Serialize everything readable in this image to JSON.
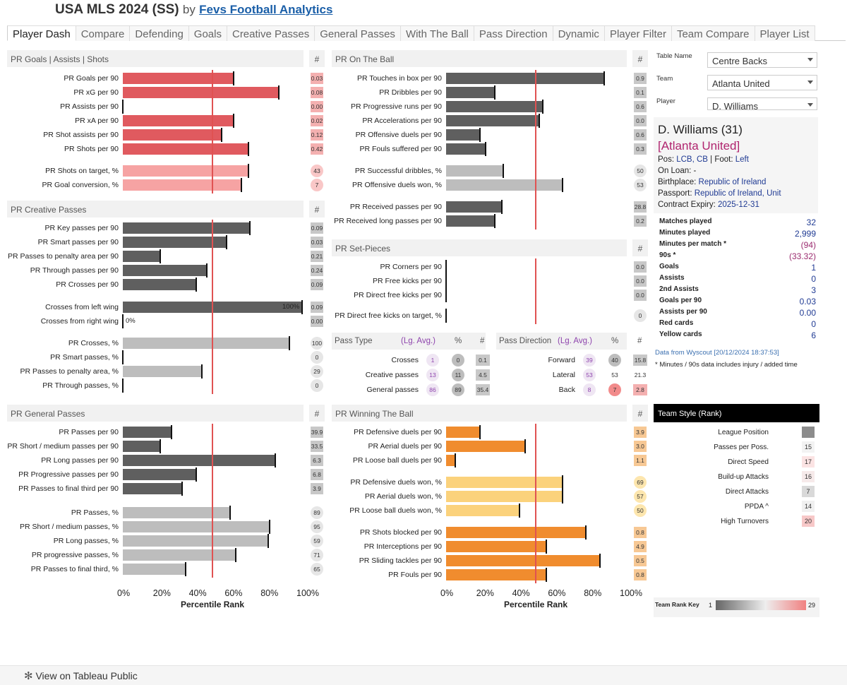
{
  "header": {
    "title": "USA MLS 2024 (SS)",
    "by": "by",
    "link": "Fevs Football Analytics"
  },
  "tabs": [
    "Player Dash",
    "Compare",
    "Defending",
    "Goals",
    "Creative Passes",
    "General Passes",
    "With The Ball",
    "Pass Direction",
    "Dynamic",
    "Player Filter",
    "Team Compare",
    "Player List"
  ],
  "axis": {
    "ticks": [
      "0%",
      "20%",
      "40%",
      "60%",
      "80%",
      "100%"
    ],
    "title": "Percentile Rank",
    "league_avg": 50
  },
  "colors": {
    "red": "#e05a5f",
    "pink": "#f6a3a3",
    "dark": "#5f5f5f",
    "grey": "#bdbdbd",
    "orange": "#f08c2e",
    "yellow": "#fbd27c"
  },
  "sections": {
    "goals": {
      "title": "PR Goals | Assists | Shots",
      "hash": "#",
      "rows": [
        {
          "label": "PR Goals per 90",
          "value": 62,
          "num": "0.03",
          "style": "red",
          "badge": "sq"
        },
        {
          "label": "PR xG per 90",
          "value": 87,
          "num": "0.08",
          "style": "red",
          "badge": "sq"
        },
        {
          "label": "PR Assists per 90",
          "value": 0,
          "num": "0.00",
          "style": "red",
          "badge": "sq"
        },
        {
          "label": "PR xA per 90",
          "value": 62,
          "num": "0.02",
          "style": "red",
          "badge": "sq"
        },
        {
          "label": "PR Shot assists per 90",
          "value": 55,
          "num": "0.12",
          "style": "red",
          "badge": "sq"
        },
        {
          "label": "PR Shots per 90",
          "value": 70,
          "num": "0.42",
          "style": "red",
          "badge": "sq"
        },
        {
          "label": "PR Shots on target, %",
          "value": 70,
          "num": "43",
          "style": "pink",
          "badge": "circ",
          "gap": true
        },
        {
          "label": "PR Goal conversion, %",
          "value": 66,
          "num": "7",
          "style": "pink",
          "badge": "circ"
        }
      ]
    },
    "creative": {
      "title": "PR Creative Passes",
      "hash": "#",
      "rows": [
        {
          "label": "PR Key passes per 90",
          "value": 71,
          "num": "0.09",
          "style": "dark",
          "badge": "sq"
        },
        {
          "label": "PR Smart passes per 90",
          "value": 58,
          "num": "0.03",
          "style": "dark",
          "badge": "sq"
        },
        {
          "label": "PR Passes to penalty area per 90",
          "value": 21,
          "num": "0.21",
          "style": "dark",
          "badge": "sq"
        },
        {
          "label": "PR Through passes per 90",
          "value": 47,
          "num": "0.24",
          "style": "dark",
          "badge": "sq"
        },
        {
          "label": "PR Crosses per 90",
          "value": 41,
          "num": "0.09",
          "style": "dark",
          "badge": "sq"
        },
        {
          "label": "Crosses from left wing",
          "value": 100,
          "num": "0.09",
          "style": "dark",
          "badge": "sq",
          "gap": true,
          "inlabel": "100%"
        },
        {
          "label": "Crosses from right wing",
          "value": 0,
          "num": "0.00",
          "style": "dark",
          "badge": "sq",
          "inlabel": "0%"
        },
        {
          "label": "PR Crosses, %",
          "value": 93,
          "num": "100",
          "style": "grey",
          "badge": "circ",
          "gap": true
        },
        {
          "label": "PR Smart passes, %",
          "value": 0,
          "num": "0",
          "style": "grey",
          "badge": "circ"
        },
        {
          "label": "PR Passes to penalty area, %",
          "value": 44,
          "num": "29",
          "style": "grey",
          "badge": "circ"
        },
        {
          "label": "PR Through passes, %",
          "value": 0,
          "num": "0",
          "style": "grey",
          "badge": "circ"
        }
      ]
    },
    "general": {
      "title": "PR General Passes",
      "hash": "#",
      "rows": [
        {
          "label": "PR Passes per 90",
          "value": 27,
          "num": "39.9",
          "style": "dark",
          "badge": "sq"
        },
        {
          "label": "PR Short / medium passes per 90",
          "value": 21,
          "num": "33.5",
          "style": "dark",
          "badge": "sq"
        },
        {
          "label": "PR Long passes per 90",
          "value": 85,
          "num": "6.3",
          "style": "dark",
          "badge": "sq"
        },
        {
          "label": "PR Progressive passes per 90",
          "value": 41,
          "num": "6.8",
          "style": "dark",
          "badge": "sq"
        },
        {
          "label": "PR Passes to final third per 90",
          "value": 33,
          "num": "3.9",
          "style": "dark",
          "badge": "sq"
        },
        {
          "label": "PR Passes, %",
          "value": 60,
          "num": "89",
          "style": "grey",
          "badge": "circ",
          "gap": true
        },
        {
          "label": "PR Short / medium passes, %",
          "value": 82,
          "num": "95",
          "style": "grey",
          "badge": "circ"
        },
        {
          "label": "PR Long passes, %",
          "value": 81,
          "num": "59",
          "style": "grey",
          "badge": "circ"
        },
        {
          "label": "PR progressive passes, %",
          "value": 63,
          "num": "71",
          "style": "grey",
          "badge": "circ"
        },
        {
          "label": "PR Passes to final third, %",
          "value": 35,
          "num": "65",
          "style": "grey",
          "badge": "circ"
        }
      ]
    },
    "ontheball": {
      "title": "PR On The Ball",
      "hash": "#",
      "rows": [
        {
          "label": "PR Touches in box per 90",
          "value": 88,
          "num": "0.9",
          "style": "dark",
          "badge": "sq"
        },
        {
          "label": "PR Dribbles per 90",
          "value": 27,
          "num": "0.1",
          "style": "dark",
          "badge": "sq"
        },
        {
          "label": "PR Progressive runs per 90",
          "value": 54,
          "num": "0.6",
          "style": "dark",
          "badge": "sq"
        },
        {
          "label": "PR Accelerations per 90",
          "value": 52,
          "num": "0.0",
          "style": "dark",
          "badge": "sq"
        },
        {
          "label": "PR Offensive duels per 90",
          "value": 19,
          "num": "0.6",
          "style": "dark",
          "badge": "sq"
        },
        {
          "label": "PR Fouls suffered per 90",
          "value": 22,
          "num": "0.3",
          "style": "dark",
          "badge": "sq"
        },
        {
          "label": "PR Successful dribbles, %",
          "value": 32,
          "num": "50",
          "style": "grey",
          "badge": "circ",
          "gap": true
        },
        {
          "label": "PR Offensive duels won, %",
          "value": 65,
          "num": "53",
          "style": "grey",
          "badge": "circ"
        },
        {
          "label": "PR Received passes per 90",
          "value": 31,
          "num": "28.8",
          "style": "dark",
          "badge": "sq",
          "gap": true
        },
        {
          "label": "PR Received long passes per 90",
          "value": 27,
          "num": "0.2",
          "style": "dark",
          "badge": "sq"
        }
      ]
    },
    "setpieces": {
      "title": "PR Set-Pieces",
      "hash": "#",
      "rows": [
        {
          "label": "PR Corners per 90",
          "value": 0,
          "num": "0.0",
          "style": "dark",
          "badge": "sq"
        },
        {
          "label": "PR Free kicks per 90",
          "value": 0,
          "num": "0.0",
          "style": "dark",
          "badge": "sq"
        },
        {
          "label": "PR Direct free kicks per 90",
          "value": 0,
          "num": "0.0",
          "style": "dark",
          "badge": "sq"
        },
        {
          "label": "PR Direct free kicks on target, %",
          "value": 0,
          "num": "0",
          "style": "grey",
          "badge": "circ",
          "gap": true
        }
      ]
    },
    "winning": {
      "title": "PR Winning The Ball",
      "hash": "#",
      "rows": [
        {
          "label": "PR Defensive duels per 90",
          "value": 19,
          "num": "3.9",
          "style": "orange",
          "badge": "sq"
        },
        {
          "label": "PR Aerial duels per 90",
          "value": 44,
          "num": "3.0",
          "style": "orange",
          "badge": "sq"
        },
        {
          "label": "PR Loose ball duels per 90",
          "value": 5,
          "num": "1.1",
          "style": "orange",
          "badge": "sq"
        },
        {
          "label": "PR Defensive duels won, %",
          "value": 65,
          "num": "69",
          "style": "yellow",
          "badge": "circ",
          "gap": true
        },
        {
          "label": "PR Aerial duels won, %",
          "value": 65,
          "num": "57",
          "style": "yellow",
          "badge": "circ"
        },
        {
          "label": "PR Loose ball duels won, %",
          "value": 41,
          "num": "50",
          "style": "yellow",
          "badge": "circ"
        },
        {
          "label": "PR Shots blocked per 90",
          "value": 78,
          "num": "0.8",
          "style": "orange",
          "badge": "sq",
          "gap": true
        },
        {
          "label": "PR Interceptions per 90",
          "value": 56,
          "num": "4.9",
          "style": "orange",
          "badge": "sq"
        },
        {
          "label": "PR Sliding tackles per 90",
          "value": 86,
          "num": "0.5",
          "style": "orange",
          "badge": "sq"
        },
        {
          "label": "PR Fouls per 90",
          "value": 56,
          "num": "0.8",
          "style": "orange",
          "badge": "sq"
        }
      ]
    }
  },
  "pass_type": {
    "title": "Pass Type",
    "avg": "(Lg. Avg.)",
    "pct": "%",
    "hash": "#",
    "rows": [
      {
        "label": "Crosses",
        "avg": "1",
        "pct": "0",
        "num": "0.1"
      },
      {
        "label": "Creative passes",
        "avg": "13",
        "pct": "11",
        "num": "4.5"
      },
      {
        "label": "General passes",
        "avg": "86",
        "pct": "89",
        "num": "35.4"
      }
    ]
  },
  "pass_direction": {
    "title": "Pass Direction",
    "avg": "(Lg. Avg.)",
    "pct": "%",
    "hash": "#",
    "rows": [
      {
        "label": "Forward",
        "avg": "39",
        "pct": "40",
        "num": "15.8"
      },
      {
        "label": "Lateral",
        "avg": "53",
        "pct": "53",
        "num": "21.3"
      },
      {
        "label": "Back",
        "avg": "8",
        "pct": "7",
        "num": "2.8"
      }
    ]
  },
  "filters": {
    "table_label": "Table Name",
    "table_value": "Centre Backs",
    "team_label": "Team",
    "team_value": "Atlanta United",
    "player_label": "Player",
    "player_value": "D. Williams"
  },
  "player": {
    "name": "D. Williams (31)",
    "team": "[Atlanta United]",
    "pos_label": "Pos:",
    "pos": "LCB, CB",
    "foot_label": "| Foot:",
    "foot": "Left",
    "loan": "On Loan: -",
    "birth_label": "Birthplace:",
    "birth": "Republic of Ireland",
    "passport_label": "Passport:",
    "passport": "Republic of Ireland, Unit",
    "contract_label": "Contract Expiry:",
    "contract": "2025-12-31"
  },
  "stats": [
    {
      "k": "Matches played",
      "v": "32"
    },
    {
      "k": "Minutes played",
      "v": "2,999"
    },
    {
      "k": "Minutes per match *",
      "v": "(94)",
      "alt": true
    },
    {
      "k": "90s *",
      "v": "(33.32)",
      "alt": true
    },
    {
      "k": "Goals",
      "v": "1"
    },
    {
      "k": "Assists",
      "v": "0"
    },
    {
      "k": "2nd Assists",
      "v": "3"
    },
    {
      "k": "Goals per 90",
      "v": "0.03"
    },
    {
      "k": "Assists per 90",
      "v": "0.00"
    },
    {
      "k": "Red cards",
      "v": "0"
    },
    {
      "k": "Yellow cards",
      "v": "6"
    }
  ],
  "notes": {
    "source": "Data from Wyscout [20/12/2024 18:37:53]",
    "minutes": "* Minutes / 90s data includes injury / added time"
  },
  "team_style": {
    "title": "Team Style (Rank)",
    "rows": [
      {
        "k": "League Position",
        "v": ""
      },
      {
        "k": "Passes per Poss.",
        "v": "15"
      },
      {
        "k": "Direct Speed",
        "v": "17"
      },
      {
        "k": "Build-up Attacks",
        "v": "16"
      },
      {
        "k": "Direct Attacks",
        "v": "7"
      },
      {
        "k": "PPDA ^",
        "v": "14"
      },
      {
        "k": "High Turnovers",
        "v": "20"
      }
    ],
    "key_label": "Team Rank Key",
    "key_min": "1",
    "key_max": "29"
  },
  "footer": {
    "label": "View on Tableau Public"
  }
}
